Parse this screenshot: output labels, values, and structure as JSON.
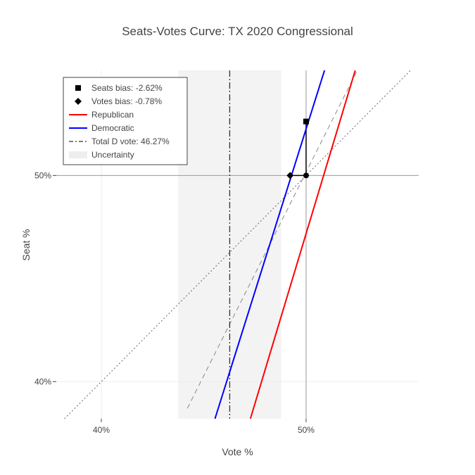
{
  "chart_data": {
    "type": "line",
    "title": "Seats-Votes Curve: TX 2020 Congressional",
    "xlabel": "Vote %",
    "ylabel": "Seat %",
    "xlim": [
      37.8,
      55.5
    ],
    "ylim": [
      38.2,
      55.1
    ],
    "x_ticks": [
      {
        "value": 40,
        "label": "40%"
      },
      {
        "value": 50,
        "label": "50%"
      }
    ],
    "y_ticks": [
      {
        "value": 40,
        "label": "40%"
      },
      {
        "value": 50,
        "label": "50%"
      }
    ],
    "grid": true,
    "legend_position": "top-left",
    "uncertainty_band": {
      "x0": 43.75,
      "x1": 48.78,
      "name": "Uncertainty",
      "color": "#f3f3f3"
    },
    "total_d_vote": {
      "x": 46.27,
      "name": "Total D vote: 46.27%"
    },
    "series": [
      {
        "name": "Republican",
        "color": "#ff0000",
        "points": [
          [
            47.28,
            38.2
          ],
          [
            52.4,
            55.1
          ]
        ]
      },
      {
        "name": "Democratic",
        "color": "#0000ff",
        "points": [
          [
            45.55,
            38.2
          ],
          [
            50.9,
            55.1
          ]
        ]
      },
      {
        "name": "Seats bias: -2.62%",
        "marker": "square",
        "color": "#000000",
        "points": [
          [
            50.0,
            52.62
          ]
        ]
      },
      {
        "name": "Votes bias: -0.78%",
        "marker": "diamond",
        "color": "#000000",
        "points": [
          [
            49.22,
            50.0
          ]
        ]
      },
      {
        "marker": "circle",
        "color": "#000000",
        "points": [
          [
            50.0,
            50.0
          ]
        ]
      }
    ],
    "reference_lines": [
      {
        "style": "dotted",
        "color": "#666666",
        "points": [
          [
            37.8,
            37.8
          ],
          [
            55.1,
            55.1
          ]
        ]
      },
      {
        "style": "dashed",
        "color": "#888888",
        "points": [
          [
            44.2,
            38.7
          ],
          [
            52.5,
            55.1
          ]
        ]
      }
    ],
    "zero_lines": {
      "x": 50,
      "y": 50
    }
  }
}
